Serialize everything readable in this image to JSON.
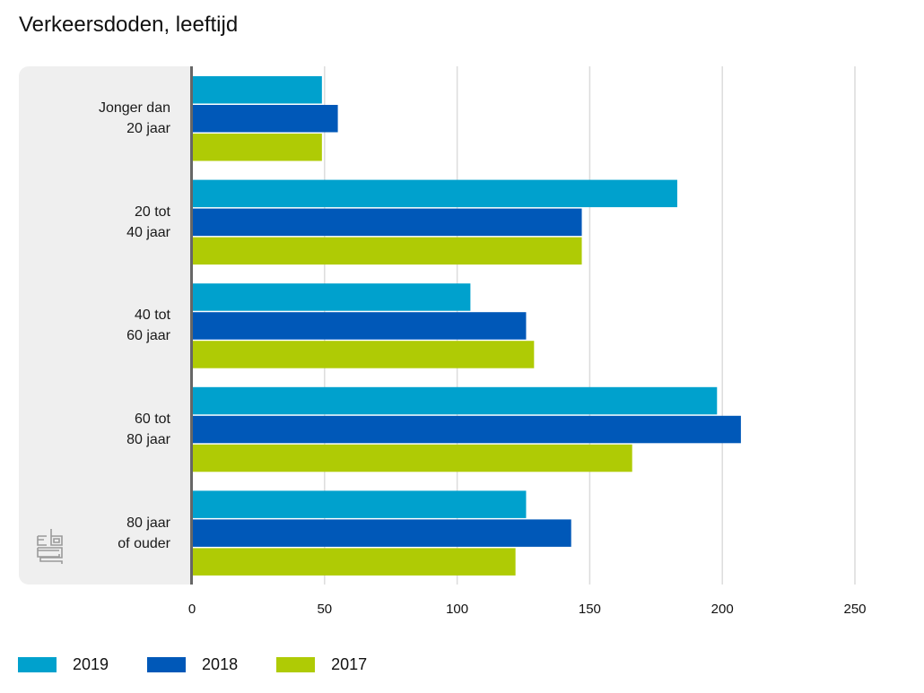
{
  "chart_data": {
    "type": "bar",
    "orientation": "horizontal",
    "title": "Verkeersdoden, leeftijd",
    "xlabel": "",
    "ylabel": "",
    "categories": [
      [
        "Jonger dan",
        "20 jaar"
      ],
      [
        "20 tot",
        "40 jaar"
      ],
      [
        "40 tot",
        "60 jaar"
      ],
      [
        "60 tot",
        "80 jaar"
      ],
      [
        "80 jaar",
        "of ouder"
      ]
    ],
    "series": [
      {
        "name": "2019",
        "color": "#00a1cd",
        "values": [
          49,
          183,
          105,
          198,
          126
        ]
      },
      {
        "name": "2018",
        "color": "#0058b8",
        "values": [
          55,
          147,
          126,
          207,
          143
        ]
      },
      {
        "name": "2017",
        "color": "#afcb05",
        "values": [
          49,
          147,
          129,
          166,
          122
        ]
      }
    ],
    "xlim": [
      0,
      250
    ],
    "xticks": [
      0,
      50,
      100,
      150,
      200,
      250
    ],
    "grid": true,
    "legend_position": "bottom-left"
  },
  "logo": "cbs-logo-icon"
}
